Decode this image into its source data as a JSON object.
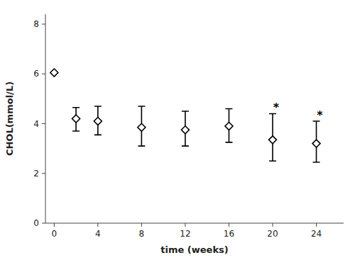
{
  "chart_data": {
    "type": "scatter",
    "marker": "diamond",
    "color": "#000000",
    "xlabel": "time (weeks)",
    "ylabel": "CHOL(mmol/L)",
    "x": [
      0,
      2,
      4,
      8,
      12,
      16,
      20,
      24
    ],
    "values": [
      6.05,
      4.2,
      4.1,
      3.85,
      3.75,
      3.9,
      3.35,
      3.2
    ],
    "error_lower": [
      0.0,
      0.5,
      0.55,
      0.75,
      0.65,
      0.65,
      0.85,
      0.75
    ],
    "error_upper": [
      0.0,
      0.45,
      0.6,
      0.85,
      0.75,
      0.7,
      1.05,
      0.9
    ],
    "annotations": [
      {
        "text": "*",
        "x": 20
      },
      {
        "text": "*",
        "x": 24
      }
    ],
    "xlim": [
      -0.8,
      26.5
    ],
    "ylim": [
      0,
      8.4
    ],
    "xticks": [
      0,
      4,
      8,
      12,
      16,
      20,
      24
    ],
    "yticks": [
      0,
      2,
      4,
      6,
      8
    ],
    "grid": false
  }
}
